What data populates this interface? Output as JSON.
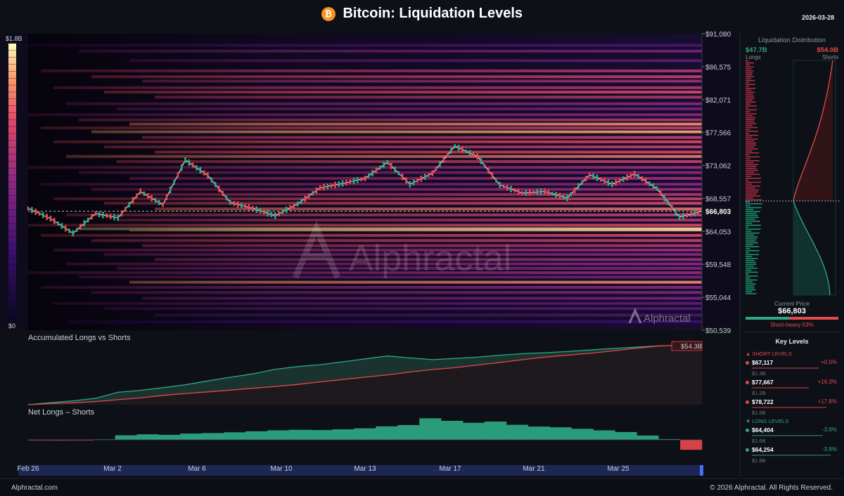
{
  "header": {
    "title": "Bitcoin: Liquidation Levels",
    "icon": "bitcoin-icon",
    "icon_glyph": "₿",
    "date": "2026-03-28"
  },
  "colors": {
    "background": "#0d1117",
    "long": "#2ea882",
    "short": "#e5484d",
    "heatmap": [
      "#120a24",
      "#3b0f70",
      "#8c2981",
      "#de4968",
      "#fe9f6d",
      "#fcfdbf"
    ]
  },
  "chart_data": [
    {
      "type": "heatmap",
      "title": "Bitcoin: Liquidation Levels",
      "y_ticks": [
        "$91,080",
        "$86,575",
        "$82,071",
        "$77,566",
        "$73,062",
        "$68,557",
        "$64,053",
        "$59,548",
        "$55,044",
        "$50,539"
      ],
      "ylim": [
        50539,
        91080
      ],
      "current_price": 66803,
      "current_price_label": "$66,803",
      "colorbar": {
        "max_label": "$1.8B",
        "min_label": "$0",
        "max": 1.8,
        "min": 0
      },
      "x_ticks": [
        "Feb 26",
        "Mar 2",
        "Mar 6",
        "Mar 10",
        "Mar 13",
        "Mar 17",
        "Mar 21",
        "Mar 25"
      ],
      "price_path": [
        [
          "Feb 26",
          67200
        ],
        [
          "Feb 27",
          65800
        ],
        [
          "Feb 28",
          63800
        ],
        [
          "Mar 1",
          66500
        ],
        [
          "Mar 2",
          65900
        ],
        [
          "Mar 3",
          69500
        ],
        [
          "Mar 4",
          67700
        ],
        [
          "Mar 5",
          73800
        ],
        [
          "Mar 6",
          71700
        ],
        [
          "Mar 7",
          68000
        ],
        [
          "Mar 8",
          67200
        ],
        [
          "Mar 9",
          66200
        ],
        [
          "Mar 10",
          67800
        ],
        [
          "Mar 11",
          70000
        ],
        [
          "Mar 12",
          70600
        ],
        [
          "Mar 13",
          71300
        ],
        [
          "Mar 14",
          73500
        ],
        [
          "Mar 15",
          70500
        ],
        [
          "Mar 16",
          72000
        ],
        [
          "Mar 17",
          75700
        ],
        [
          "Mar 18",
          74300
        ],
        [
          "Mar 19",
          70400
        ],
        [
          "Mar 20",
          69300
        ],
        [
          "Mar 21",
          69500
        ],
        [
          "Mar 22",
          68600
        ],
        [
          "Mar 23",
          71800
        ],
        [
          "Mar 24",
          70500
        ],
        [
          "Mar 25",
          71900
        ],
        [
          "Mar 26",
          69900
        ],
        [
          "Mar 27",
          66000
        ],
        [
          "Mar 28",
          66800
        ]
      ],
      "bands": [
        {
          "price": 89500,
          "intensity": 0.25
        },
        {
          "price": 88700,
          "intensity": 0.35
        },
        {
          "price": 87400,
          "intensity": 0.3
        },
        {
          "price": 86000,
          "intensity": 0.5
        },
        {
          "price": 85200,
          "intensity": 0.55
        },
        {
          "price": 84600,
          "intensity": 0.45
        },
        {
          "price": 83700,
          "intensity": 0.5
        },
        {
          "price": 83100,
          "intensity": 0.6
        },
        {
          "price": 82400,
          "intensity": 0.5
        },
        {
          "price": 81500,
          "intensity": 0.4
        },
        {
          "price": 80800,
          "intensity": 0.35
        },
        {
          "price": 80000,
          "intensity": 0.4
        },
        {
          "price": 79300,
          "intensity": 0.5
        },
        {
          "price": 78722,
          "intensity": 0.78
        },
        {
          "price": 78200,
          "intensity": 0.55
        },
        {
          "price": 77667,
          "intensity": 0.82
        },
        {
          "price": 76900,
          "intensity": 0.55
        },
        {
          "price": 76300,
          "intensity": 0.6
        },
        {
          "price": 75600,
          "intensity": 0.55
        },
        {
          "price": 74900,
          "intensity": 0.6
        },
        {
          "price": 74300,
          "intensity": 0.72
        },
        {
          "price": 73600,
          "intensity": 0.55
        },
        {
          "price": 72800,
          "intensity": 0.45
        },
        {
          "price": 72100,
          "intensity": 0.4
        },
        {
          "price": 71300,
          "intensity": 0.45
        },
        {
          "price": 70500,
          "intensity": 0.4
        },
        {
          "price": 69800,
          "intensity": 0.45
        },
        {
          "price": 69100,
          "intensity": 0.5
        },
        {
          "price": 68500,
          "intensity": 0.55
        },
        {
          "price": 67900,
          "intensity": 0.6
        },
        {
          "price": 67117,
          "intensity": 0.7
        },
        {
          "price": 66300,
          "intensity": 0.55
        },
        {
          "price": 65600,
          "intensity": 0.5
        },
        {
          "price": 64900,
          "intensity": 0.6
        },
        {
          "price": 64404,
          "intensity": 0.92
        },
        {
          "price": 64254,
          "intensity": 0.88
        },
        {
          "price": 63500,
          "intensity": 0.6
        },
        {
          "price": 62800,
          "intensity": 0.55
        },
        {
          "price": 62100,
          "intensity": 0.5
        },
        {
          "price": 61500,
          "intensity": 0.45
        },
        {
          "price": 60900,
          "intensity": 0.4
        },
        {
          "price": 60200,
          "intensity": 0.45
        },
        {
          "price": 59600,
          "intensity": 0.4
        },
        {
          "price": 59000,
          "intensity": 0.38
        },
        {
          "price": 58400,
          "intensity": 0.42
        },
        {
          "price": 57800,
          "intensity": 0.35
        },
        {
          "price": 57100,
          "intensity": 0.75
        },
        {
          "price": 56400,
          "intensity": 0.4
        },
        {
          "price": 55700,
          "intensity": 0.38
        },
        {
          "price": 54900,
          "intensity": 0.35
        },
        {
          "price": 54200,
          "intensity": 0.3
        },
        {
          "price": 53500,
          "intensity": 0.28
        },
        {
          "price": 52600,
          "intensity": 0.25
        },
        {
          "price": 51700,
          "intensity": 0.2
        }
      ]
    },
    {
      "type": "area",
      "title": "Accumulated Longs vs Shorts",
      "end_label": "$54.3B",
      "series": [
        {
          "name": "Longs",
          "color": "#2ea882",
          "values": [
            0,
            1.8,
            3.5,
            5.8,
            11.2,
            13.0,
            15.4,
            18.0,
            21.5,
            24.8,
            27.9,
            32.1,
            34.5,
            36.2,
            38.8,
            41.5,
            44.1,
            42.3,
            40.8,
            41.9,
            43.0,
            44.8,
            46.2,
            47.0,
            48.1,
            49.5,
            50.8,
            52.0,
            53.2,
            53.8,
            54.3
          ]
        },
        {
          "name": "Shorts",
          "color": "#e5484d",
          "values": [
            0,
            0.9,
            1.7,
            2.8,
            4.5,
            6.1,
            8.4,
            10.1,
            11.6,
            13.2,
            14.8,
            16.5,
            18.3,
            20.6,
            22.8,
            24.9,
            27.0,
            29.6,
            31.8,
            33.5,
            35.9,
            38.2,
            40.7,
            43.1,
            44.8,
            46.5,
            48.6,
            50.9,
            53.0,
            54.0,
            54.3
          ]
        }
      ]
    },
    {
      "type": "bar",
      "title": "Net Longs – Shorts",
      "values": [
        -0.2,
        -0.3,
        -0.1,
        0.2,
        1.8,
        2.2,
        2.0,
        2.5,
        2.7,
        3.0,
        3.4,
        3.8,
        4.0,
        3.9,
        4.2,
        4.6,
        5.4,
        5.9,
        8.6,
        7.6,
        6.8,
        7.3,
        6.0,
        5.3,
        5.0,
        4.4,
        3.8,
        3.1,
        1.7,
        0.3,
        -4.0
      ]
    }
  ],
  "liquidation_distribution": {
    "title": "Liquidation Distribution",
    "longs_value": "$47.7B",
    "longs_label": "Longs",
    "shorts_value": "$54.0B",
    "shorts_label": "Shorts",
    "current_price_label": "Current Price",
    "current_price": "$66,803",
    "short_share": 0.53,
    "ratio_label": "Short-heavy 53%"
  },
  "key_levels": {
    "title": "Key Levels",
    "short_section": "▲ SHORT LEVELS",
    "long_section": "▼ LONG LEVELS",
    "short_levels": [
      {
        "price": "$67,117",
        "pct": "+0.5%",
        "vol": "$1.3B",
        "strength": 0.85
      },
      {
        "price": "$77,667",
        "pct": "+16.3%",
        "vol": "$1.2B",
        "strength": 0.72
      },
      {
        "price": "$78,722",
        "pct": "+17.8%",
        "vol": "$1.6B",
        "strength": 0.95
      }
    ],
    "long_levels": [
      {
        "price": "$64,404",
        "pct": "-3.6%",
        "vol": "$1.6B",
        "strength": 0.9
      },
      {
        "price": "$64,254",
        "pct": "-3.8%",
        "vol": "$1.8B",
        "strength": 1.0
      }
    ]
  },
  "watermark": "Alphractal",
  "footer": {
    "left": "Alphractal.com",
    "right": "© 2026 Alphractal. All Rights Reserved."
  }
}
